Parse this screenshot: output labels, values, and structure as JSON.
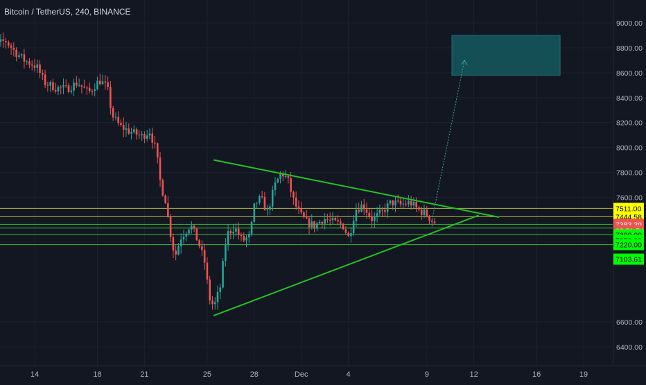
{
  "header": {
    "symbol_title": "Bitcoin / TetherUS, 240, BINANCE"
  },
  "colors": {
    "background": "#131722",
    "up_candle": "#26a69a",
    "down_candle": "#ef5350",
    "triangle_line": "#22c322",
    "support_line": "#3cc93c",
    "resistance_line": "#c8c83c",
    "target_box": "#14525a",
    "projection": "#3aa5a5",
    "axis_text": "#b2b5be",
    "label_yellow": "#ffff00",
    "label_green": "#00ff00",
    "label_red": "#ef5350"
  },
  "price_axis": {
    "ticks": [
      "9000.00",
      "8800.00",
      "8600.00",
      "8400.00",
      "8200.00",
      "8000.00",
      "7800.00",
      "7600.00",
      "6600.00",
      "6400.00"
    ],
    "tick_values": [
      9000,
      8800,
      8600,
      8400,
      8200,
      8000,
      7800,
      7600,
      6600,
      6400
    ]
  },
  "price_labels": [
    {
      "text": "7511.00",
      "value": 7511,
      "style": "yellow"
    },
    {
      "text": "7444.58",
      "value": 7444.58,
      "style": "yellow"
    },
    {
      "text": "7383.39",
      "value": 7383.39,
      "style": "red"
    },
    {
      "text": "03:51:54",
      "value": 7333,
      "style": "red"
    },
    {
      "text": "7300.00",
      "value": 7300,
      "style": "green"
    },
    {
      "text": "7253.00",
      "value": 7253,
      "style": "green"
    },
    {
      "text": "7220.00",
      "value": 7220,
      "style": "green"
    },
    {
      "text": "7103.61",
      "value": 7103.61,
      "style": "green"
    }
  ],
  "time_axis": {
    "labels": [
      "14",
      "18",
      "21",
      "25",
      "28",
      "Dec",
      "4",
      "9",
      "12",
      "16",
      "19"
    ],
    "label_values": [
      14,
      18,
      21,
      25,
      28,
      31,
      34,
      39,
      42,
      46,
      49
    ]
  },
  "chart_data": {
    "type": "candlestick",
    "title": "Bitcoin / TetherUS, 240, BINANCE",
    "ylim": [
      6300,
      9100
    ],
    "xlim": [
      10.5,
      51
    ],
    "x_unit": "days since Nov 1 (Dec 1 = 31)",
    "horizontal_levels": [
      {
        "value": 7511,
        "color": "yellow"
      },
      {
        "value": 7444.58,
        "color": "yellow"
      },
      {
        "value": 7383,
        "color": "green"
      },
      {
        "value": 7353,
        "color": "green"
      },
      {
        "value": 7300,
        "color": "green"
      },
      {
        "value": 7220,
        "color": "green"
      }
    ],
    "trendlines": [
      {
        "name": "upper",
        "from": [
          25.4,
          7900
        ],
        "to": [
          43.6,
          7440
        ]
      },
      {
        "name": "lower",
        "from": [
          25.4,
          6650
        ],
        "to": [
          42.3,
          7455
        ]
      }
    ],
    "target_box": {
      "x0": 40.6,
      "x1": 47.5,
      "y0": 8580,
      "y1": 8900
    },
    "projection": {
      "from": [
        39.3,
        7400
      ],
      "to": [
        41.4,
        8700
      ]
    },
    "price_path": [
      [
        10.5,
        8750
      ],
      [
        11.6,
        8810
      ],
      [
        12.3,
        8860
      ],
      [
        12.9,
        8770
      ],
      [
        13.5,
        8700
      ],
      [
        14.3,
        8650
      ],
      [
        14.8,
        8520
      ],
      [
        15.5,
        8480
      ],
      [
        16.2,
        8470
      ],
      [
        16.9,
        8520
      ],
      [
        17.6,
        8440
      ],
      [
        18.3,
        8540
      ],
      [
        18.8,
        8480
      ],
      [
        19.1,
        8260
      ],
      [
        19.6,
        8170
      ],
      [
        20.2,
        8130
      ],
      [
        21.0,
        8090
      ],
      [
        21.5,
        8130
      ],
      [
        21.9,
        7980
      ],
      [
        22.2,
        7700
      ],
      [
        22.5,
        7580
      ],
      [
        22.8,
        7330
      ],
      [
        23.1,
        7120
      ],
      [
        23.5,
        7280
      ],
      [
        24.1,
        7380
      ],
      [
        24.6,
        7240
      ],
      [
        25.0,
        7080
      ],
      [
        25.3,
        6790
      ],
      [
        25.6,
        6720
      ],
      [
        26.0,
        6880
      ],
      [
        26.4,
        7300
      ],
      [
        26.9,
        7360
      ],
      [
        27.4,
        7250
      ],
      [
        27.9,
        7290
      ],
      [
        28.2,
        7550
      ],
      [
        28.6,
        7590
      ],
      [
        29.0,
        7480
      ],
      [
        29.5,
        7700
      ],
      [
        29.9,
        7800
      ],
      [
        30.3,
        7740
      ],
      [
        30.7,
        7560
      ],
      [
        31.1,
        7460
      ],
      [
        31.5,
        7400
      ],
      [
        32.0,
        7370
      ],
      [
        32.6,
        7430
      ],
      [
        33.2,
        7400
      ],
      [
        33.8,
        7380
      ],
      [
        34.2,
        7270
      ],
      [
        34.6,
        7500
      ],
      [
        35.1,
        7540
      ],
      [
        35.7,
        7420
      ],
      [
        36.3,
        7480
      ],
      [
        36.9,
        7560
      ],
      [
        37.5,
        7540
      ],
      [
        38.1,
        7560
      ],
      [
        38.6,
        7500
      ],
      [
        39.1,
        7470
      ],
      [
        39.6,
        7400
      ]
    ]
  }
}
